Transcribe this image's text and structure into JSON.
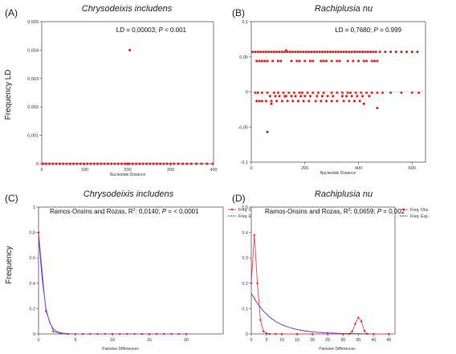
{
  "chart_data": [
    {
      "type": "scatter",
      "panel_label": "(A)",
      "title": "Chrysodeixis includens",
      "xlabel": "Nucleotide Distance",
      "ylabel": "Frequency LD",
      "annotation": "LD = 0,00003; P < 0.001",
      "xlim": [
        0,
        400
      ],
      "ylim": [
        0,
        0.005
      ],
      "xticks": [
        0,
        100,
        200,
        300,
        400
      ],
      "yticks": [
        0,
        0.001,
        0.002,
        0.003,
        0.004,
        0.005
      ],
      "ytick_labels": [
        "0",
        "0,001",
        "0,002",
        "0,003",
        "0,004",
        "0,005"
      ],
      "series": [
        {
          "x": [
            3,
            10,
            18,
            26,
            34,
            42,
            50,
            58,
            66,
            74,
            82,
            90,
            98,
            106,
            114,
            122,
            130,
            138,
            146,
            154,
            162,
            170,
            178,
            186,
            194,
            200,
            204,
            212,
            220,
            228,
            236,
            244,
            252,
            260,
            268,
            276,
            284,
            292,
            300,
            308,
            318,
            328,
            338,
            348,
            360,
            372,
            385,
            398,
            205
          ],
          "y": [
            0,
            0,
            0,
            0,
            0,
            0,
            0,
            0,
            0,
            0,
            0,
            0,
            0,
            0,
            0,
            0,
            0,
            0,
            0,
            0,
            0,
            0,
            0,
            0,
            0,
            0,
            0,
            0,
            0,
            0,
            0,
            0,
            0,
            0,
            0,
            0,
            0,
            0,
            0,
            0,
            0,
            0,
            0,
            0,
            0,
            0,
            0,
            0,
            0.004
          ]
        }
      ],
      "colors": {
        "points": "#e0201b"
      }
    },
    {
      "type": "scatter",
      "panel_label": "(B)",
      "title": "Rachiplusia nu",
      "xlabel": "Nucleotide Distance",
      "ylabel": "",
      "annotation": "LD = 0,7680; P = 0.999",
      "xlim": [
        0,
        650
      ],
      "ylim": [
        -0.1,
        0.1
      ],
      "xticks": [
        0,
        200,
        400,
        600
      ],
      "yticks": [
        -0.1,
        -0.05,
        0,
        0.05,
        0.1
      ],
      "ytick_labels": [
        "-0,1",
        "-0,05",
        "0",
        "0,05",
        "0,1"
      ],
      "series": [
        {
          "x": [
            5,
            15,
            25,
            35,
            45,
            55,
            65,
            75,
            85,
            95,
            105,
            115,
            125,
            135,
            145,
            155,
            165,
            175,
            185,
            195,
            205,
            215,
            225,
            235,
            245,
            255,
            265,
            275,
            285,
            295,
            305,
            315,
            325,
            335,
            345,
            355,
            365,
            375,
            385,
            395,
            405,
            415,
            425,
            435,
            445,
            455,
            465,
            480,
            500,
            520,
            540,
            560,
            580,
            600,
            620,
            130,
            20,
            30,
            40,
            50,
            60,
            80,
            100,
            110,
            150,
            170,
            180,
            200,
            220,
            230,
            260,
            270,
            280,
            300,
            320,
            330,
            360,
            380,
            400,
            420,
            430,
            450,
            460,
            470,
            15,
            25,
            40,
            60,
            85,
            100,
            120,
            140,
            160,
            180,
            190,
            210,
            230,
            250,
            270,
            300,
            320,
            340,
            360,
            370,
            390,
            410,
            430,
            450,
            470,
            490,
            520,
            560,
            600,
            625,
            70,
            90,
            105,
            125,
            130,
            150,
            165,
            185,
            200,
            220,
            245,
            265,
            285,
            305,
            340,
            355,
            375,
            395,
            415,
            440,
            20,
            30,
            40,
            55,
            75,
            95,
            115,
            135,
            155,
            175,
            195,
            215,
            240,
            260,
            280,
            300,
            320,
            345,
            365,
            385,
            405,
            75,
            420,
            470,
            60
          ],
          "y": [
            0.057,
            0.057,
            0.057,
            0.057,
            0.057,
            0.057,
            0.057,
            0.057,
            0.057,
            0.057,
            0.057,
            0.057,
            0.057,
            0.057,
            0.057,
            0.057,
            0.057,
            0.057,
            0.057,
            0.057,
            0.057,
            0.057,
            0.057,
            0.057,
            0.057,
            0.057,
            0.057,
            0.057,
            0.057,
            0.057,
            0.057,
            0.057,
            0.057,
            0.057,
            0.057,
            0.057,
            0.057,
            0.057,
            0.057,
            0.057,
            0.057,
            0.057,
            0.057,
            0.057,
            0.057,
            0.057,
            0.057,
            0.057,
            0.057,
            0.057,
            0.057,
            0.057,
            0.057,
            0.057,
            0.057,
            0.059,
            0.044,
            0.044,
            0.044,
            0.044,
            0.044,
            0.044,
            0.044,
            0.044,
            0.044,
            0.044,
            0.044,
            0.044,
            0.044,
            0.044,
            0.044,
            0.044,
            0.044,
            0.044,
            0.044,
            0.044,
            0.044,
            0.044,
            0.044,
            0.044,
            0.044,
            0.044,
            0.044,
            0.044,
            -0.001,
            -0.001,
            -0.001,
            -0.001,
            -0.001,
            -0.001,
            -0.001,
            -0.001,
            -0.001,
            -0.001,
            -0.001,
            -0.001,
            -0.001,
            -0.001,
            -0.001,
            -0.001,
            -0.001,
            -0.001,
            -0.001,
            -0.001,
            -0.001,
            -0.001,
            -0.001,
            -0.001,
            -0.001,
            -0.001,
            -0.001,
            -0.001,
            -0.001,
            -0.001,
            -0.006,
            -0.006,
            -0.006,
            -0.006,
            -0.006,
            -0.006,
            -0.006,
            -0.006,
            -0.006,
            -0.006,
            -0.006,
            -0.006,
            -0.006,
            -0.006,
            -0.006,
            -0.006,
            -0.006,
            -0.006,
            -0.006,
            -0.006,
            -0.013,
            -0.013,
            -0.013,
            -0.013,
            -0.013,
            -0.013,
            -0.013,
            -0.013,
            -0.013,
            -0.013,
            -0.013,
            -0.013,
            -0.013,
            -0.013,
            -0.013,
            -0.013,
            -0.013,
            -0.013,
            -0.013,
            -0.013,
            -0.013,
            -0.017,
            -0.017,
            -0.023,
            -0.057
          ]
        }
      ],
      "colors": {
        "points": "#e0201b"
      }
    },
    {
      "type": "line",
      "panel_label": "(C)",
      "title": "Chrysodeixis includens",
      "xlabel": "Pairwise Differences",
      "ylabel": "Frequency",
      "annotation": "Ramos-Onsins and Rozas, R²: 0,0140; P = < 0.0001",
      "xlim": [
        0,
        25
      ],
      "ylim": [
        0,
        1
      ],
      "xticks": [
        0,
        5,
        10,
        15,
        20
      ],
      "yticks": [
        0,
        0.2,
        0.4,
        0.6,
        0.8,
        1
      ],
      "series": [
        {
          "name": "Freq. Obs.",
          "x": [
            0,
            1,
            2,
            3,
            4,
            5,
            6,
            7,
            8,
            9,
            10,
            11,
            12,
            13,
            14,
            15,
            16,
            17,
            18,
            19,
            20
          ],
          "y": [
            0.8,
            0.18,
            0.02,
            0.003,
            0,
            0,
            0,
            0,
            0,
            0,
            0,
            0,
            0,
            0,
            0,
            0,
            0,
            0,
            0,
            0,
            0
          ]
        },
        {
          "name": "Freq. Exp.",
          "x": [
            0,
            0.5,
            1,
            1.5,
            2,
            2.5,
            3,
            4,
            5,
            6,
            8,
            10,
            12,
            14,
            16,
            18,
            20
          ],
          "y": [
            0.77,
            0.43,
            0.2,
            0.09,
            0.04,
            0.018,
            0.008,
            0.002,
            0,
            0,
            0,
            0,
            0,
            0,
            0,
            0,
            0
          ]
        }
      ],
      "colors": {
        "obs": "#ff3b3b",
        "exp": "#3a3acd",
        "overlap": "#b040c0"
      }
    },
    {
      "type": "line",
      "panel_label": "(D)",
      "title": "Rachiplusia nu",
      "xlabel": "Pairwise Differences",
      "ylabel": "",
      "annotation": "Ramos-Onsins and Rozas, R²: 0,0659; P = 0.002",
      "xlim": [
        0,
        47
      ],
      "ylim": [
        0,
        0.5
      ],
      "xticks": [
        0,
        5,
        10,
        15,
        20,
        25,
        30,
        35,
        40,
        45
      ],
      "yticks": [
        0,
        0.1,
        0.2,
        0.3,
        0.4,
        0.5
      ],
      "series": [
        {
          "name": "Freq. Obs.",
          "x": [
            0,
            1,
            2,
            3,
            4,
            5,
            6,
            8,
            10,
            15,
            20,
            25,
            30,
            32,
            33,
            34,
            35,
            36,
            37,
            38,
            40,
            45
          ],
          "y": [
            0.2,
            0.39,
            0.2,
            0.055,
            0.01,
            0.002,
            0,
            0,
            0,
            0,
            0,
            0,
            0,
            0,
            0.01,
            0.04,
            0.065,
            0.05,
            0.012,
            0,
            0,
            0
          ]
        },
        {
          "name": "Freq. Exp.",
          "x": [
            0,
            2,
            4,
            6,
            8,
            10,
            12,
            15,
            18,
            21,
            25,
            30,
            35,
            40,
            45
          ],
          "y": [
            0.16,
            0.12,
            0.09,
            0.066,
            0.049,
            0.036,
            0.027,
            0.017,
            0.011,
            0.007,
            0.004,
            0.002,
            0.001,
            0.0004,
            0.0002
          ]
        }
      ],
      "colors": {
        "obs": "#ff3b3b",
        "exp": "#3a3acd"
      }
    }
  ]
}
